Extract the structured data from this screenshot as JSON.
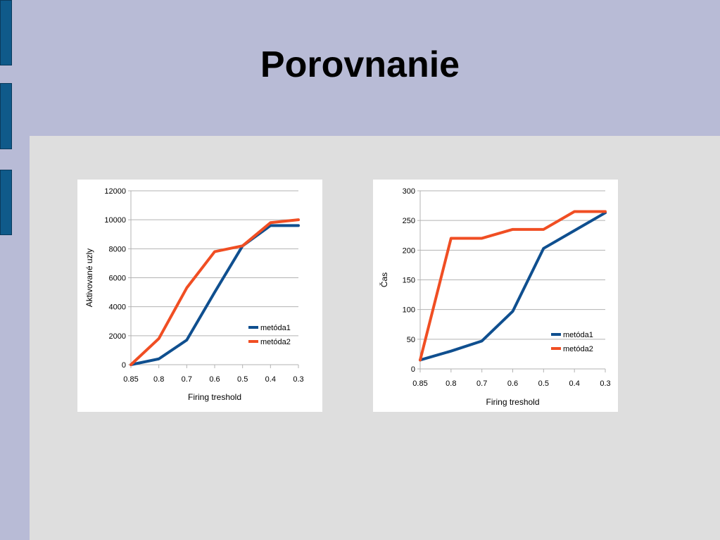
{
  "slide": {
    "title": "Porovnanie"
  },
  "colors": {
    "background": "#b8bbd6",
    "content": "#dedede",
    "side_tab": "#0f5a8a",
    "series1": "#0f4f8f",
    "series2": "#f04e23"
  },
  "chart_data": [
    {
      "type": "line",
      "x": [
        "0.85",
        "0.8",
        "0.7",
        "0.6",
        "0.5",
        "0.4",
        "0.3"
      ],
      "xlabel": "Firing treshold",
      "ylabel": "Aktivované uzly",
      "ylim": [
        0,
        12000
      ],
      "yticks": [
        0,
        2000,
        4000,
        6000,
        8000,
        10000,
        12000
      ],
      "grid": true,
      "legend": "right",
      "series": [
        {
          "name": "metóda1",
          "values": [
            0,
            400,
            1700,
            5000,
            8200,
            9600,
            9600
          ]
        },
        {
          "name": "metóda2",
          "values": [
            0,
            1800,
            5300,
            7800,
            8200,
            9800,
            10000
          ]
        }
      ]
    },
    {
      "type": "line",
      "x": [
        "0.85",
        "0.8",
        "0.7",
        "0.6",
        "0.5",
        "0.4",
        "0.3"
      ],
      "xlabel": "Firing treshold",
      "ylabel": "Čas",
      "ylim": [
        0,
        300
      ],
      "yticks": [
        0,
        50,
        100,
        150,
        200,
        250,
        300
      ],
      "grid": true,
      "legend": "right",
      "series": [
        {
          "name": "metóda1",
          "values": [
            15,
            30,
            47,
            97,
            203,
            233,
            263
          ]
        },
        {
          "name": "metóda2",
          "values": [
            15,
            220,
            220,
            235,
            235,
            265,
            265
          ]
        }
      ]
    }
  ]
}
